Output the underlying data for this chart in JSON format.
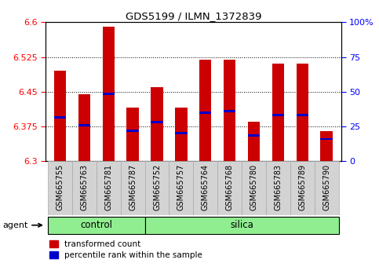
{
  "title": "GDS5199 / ILMN_1372839",
  "samples": [
    "GSM665755",
    "GSM665763",
    "GSM665781",
    "GSM665787",
    "GSM665752",
    "GSM665757",
    "GSM665764",
    "GSM665768",
    "GSM665780",
    "GSM665783",
    "GSM665789",
    "GSM665790"
  ],
  "groups": [
    "control",
    "control",
    "control",
    "control",
    "silica",
    "silica",
    "silica",
    "silica",
    "silica",
    "silica",
    "silica",
    "silica"
  ],
  "bar_tops": [
    6.495,
    6.445,
    6.59,
    6.415,
    6.46,
    6.415,
    6.52,
    6.52,
    6.385,
    6.51,
    6.51,
    6.365
  ],
  "bar_bottom": 6.3,
  "blue_markers": [
    6.395,
    6.378,
    6.445,
    6.365,
    6.385,
    6.36,
    6.405,
    6.408,
    6.355,
    6.4,
    6.4,
    6.348
  ],
  "ylim": [
    6.3,
    6.6
  ],
  "yticks_left": [
    6.3,
    6.375,
    6.45,
    6.525,
    6.6
  ],
  "yticks_right": [
    0,
    25,
    50,
    75,
    100
  ],
  "bar_color": "#cc0000",
  "marker_color": "#0000cc",
  "green_color": "#90ee90",
  "gray_color": "#d3d3d3",
  "legend_tc_color": "#cc0000",
  "legend_pr_color": "#0000cc",
  "n_control": 4,
  "bar_width": 0.5
}
